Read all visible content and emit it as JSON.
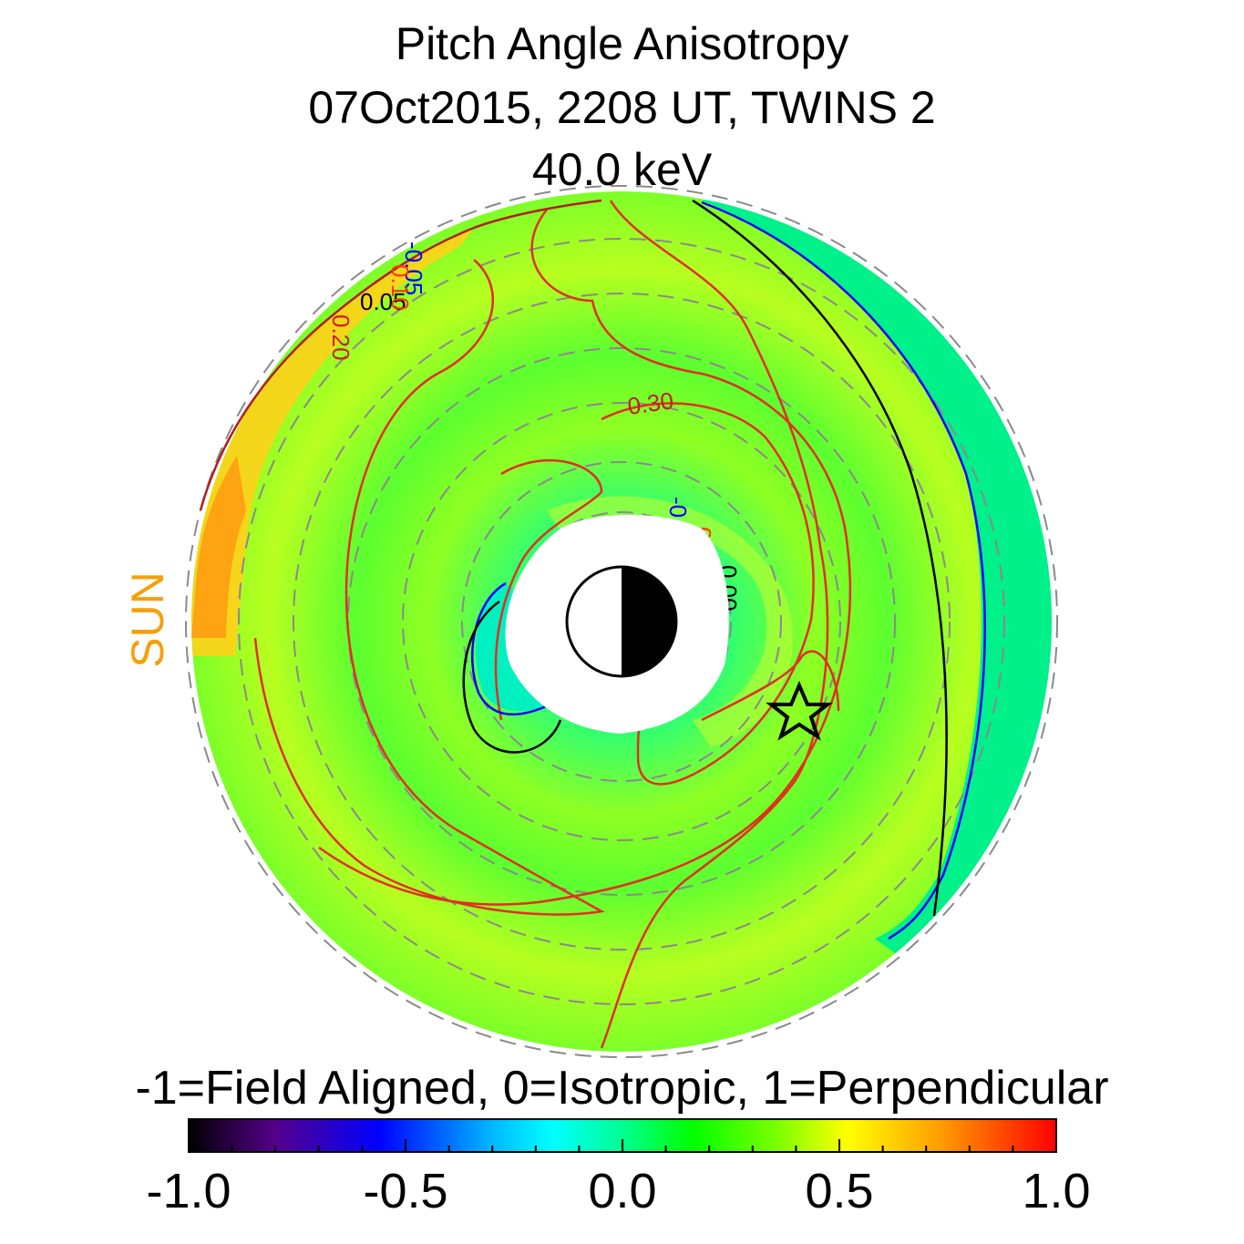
{
  "title": {
    "line1": "Pitch Angle Anisotropy",
    "line2": "07Oct2015, 2208 UT,  TWINS 2",
    "line3": "40.0 keV"
  },
  "sun_label": "SUN",
  "colorbar": {
    "caption": "-1=Field Aligned, 0=Isotropic, 1=Perpendicular",
    "ticks": [
      "-1.0",
      "-0.5",
      "0.0",
      "0.5",
      "1.0"
    ],
    "range": [
      -1.0,
      1.0
    ],
    "colormap": [
      "#000000",
      "#55008a",
      "#0000ff",
      "#00b8ff",
      "#00ffff",
      "#00ff90",
      "#00ff00",
      "#7dff00",
      "#ffff00",
      "#ff9900",
      "#ff0000"
    ]
  },
  "chart_data": {
    "type": "heatmap",
    "description_source": "polar map of anisotropy values with contour lines",
    "contour_levels": [
      {
        "value": "-0.05",
        "color": "#0000ff"
      },
      {
        "value": "0.00",
        "color": "#000000"
      },
      {
        "value": "0.10",
        "color": "#ff3a00"
      },
      {
        "value": "0.30",
        "color": "#d02020"
      }
    ],
    "contour_labels_printed": [
      "-0.05",
      "0.05",
      "0.10",
      "0.20",
      "0.30",
      "0.00"
    ],
    "regions": [
      {
        "name": "dayside outer edge",
        "value": 0.7
      },
      {
        "name": "dawn-dusk ring",
        "value": 0.35
      },
      {
        "name": "nightside outer band",
        "value": 0.05
      },
      {
        "name": "inner dusk pocket",
        "value": -0.05
      },
      {
        "name": "background",
        "value": 0.2
      }
    ],
    "markers": [
      {
        "kind": "earth",
        "symbol": "half-shaded circle"
      },
      {
        "kind": "spacecraft",
        "symbol": "star"
      }
    ]
  }
}
